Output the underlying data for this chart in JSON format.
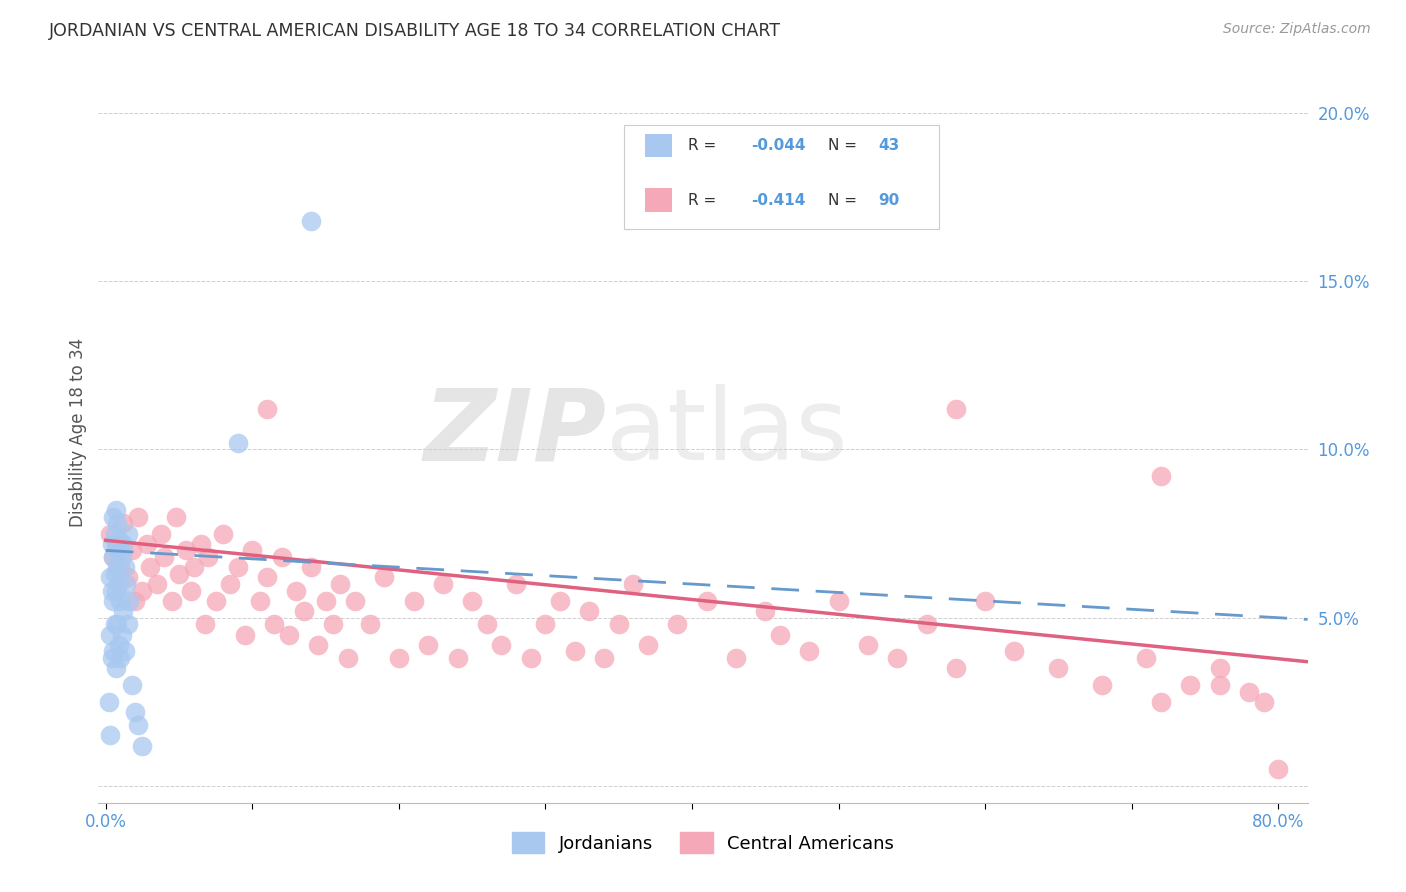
{
  "title": "JORDANIAN VS CENTRAL AMERICAN DISABILITY AGE 18 TO 34 CORRELATION CHART",
  "source": "Source: ZipAtlas.com",
  "ylabel": "Disability Age 18 to 34",
  "xlim": [
    0.0,
    0.82
  ],
  "ylim": [
    -0.005,
    0.215
  ],
  "xticks": [
    0.0,
    0.1,
    0.2,
    0.3,
    0.4,
    0.5,
    0.6,
    0.7,
    0.8
  ],
  "xticklabels": [
    "0.0%",
    "",
    "",
    "",
    "",
    "",
    "",
    "",
    "80.0%"
  ],
  "yticks": [
    0.0,
    0.05,
    0.1,
    0.15,
    0.2
  ],
  "yticklabels": [
    "",
    "5.0%",
    "10.0%",
    "15.0%",
    "20.0%"
  ],
  "jordanian_color": "#a8c8f0",
  "central_american_color": "#f5a8b8",
  "jordanian_line_color": "#6699cc",
  "central_american_line_color": "#e06080",
  "watermark_zip": "ZIP",
  "watermark_atlas": "atlas",
  "background_color": "#ffffff",
  "grid_color": "#d0d0d0",
  "tick_color": "#5599dd",
  "title_color": "#333333",
  "source_color": "#999999",
  "jord_intercept": 0.07,
  "jord_slope": -0.044,
  "ca_intercept": 0.072,
  "ca_slope": -0.414,
  "jordanians_x": [
    0.002,
    0.003,
    0.003,
    0.003,
    0.004,
    0.004,
    0.004,
    0.005,
    0.005,
    0.005,
    0.005,
    0.006,
    0.006,
    0.006,
    0.007,
    0.007,
    0.007,
    0.007,
    0.008,
    0.008,
    0.008,
    0.009,
    0.009,
    0.009,
    0.01,
    0.01,
    0.01,
    0.011,
    0.011,
    0.012,
    0.012,
    0.013,
    0.013,
    0.014,
    0.015,
    0.015,
    0.016,
    0.018,
    0.02,
    0.022,
    0.025,
    0.09,
    0.14
  ],
  "jordanians_y": [
    0.025,
    0.062,
    0.045,
    0.015,
    0.072,
    0.038,
    0.058,
    0.08,
    0.068,
    0.055,
    0.04,
    0.075,
    0.063,
    0.048,
    0.082,
    0.07,
    0.058,
    0.035,
    0.078,
    0.065,
    0.048,
    0.073,
    0.06,
    0.042,
    0.07,
    0.055,
    0.038,
    0.068,
    0.045,
    0.072,
    0.052,
    0.065,
    0.04,
    0.06,
    0.075,
    0.048,
    0.055,
    0.03,
    0.022,
    0.018,
    0.012,
    0.102,
    0.168
  ],
  "central_americans_x": [
    0.003,
    0.005,
    0.007,
    0.01,
    0.012,
    0.015,
    0.018,
    0.02,
    0.022,
    0.025,
    0.028,
    0.03,
    0.035,
    0.038,
    0.04,
    0.045,
    0.048,
    0.05,
    0.055,
    0.058,
    0.06,
    0.065,
    0.068,
    0.07,
    0.075,
    0.08,
    0.085,
    0.09,
    0.095,
    0.1,
    0.105,
    0.11,
    0.115,
    0.12,
    0.125,
    0.13,
    0.135,
    0.14,
    0.145,
    0.15,
    0.155,
    0.16,
    0.165,
    0.17,
    0.18,
    0.19,
    0.2,
    0.21,
    0.22,
    0.23,
    0.24,
    0.25,
    0.26,
    0.27,
    0.28,
    0.29,
    0.3,
    0.31,
    0.32,
    0.33,
    0.34,
    0.35,
    0.36,
    0.37,
    0.39,
    0.41,
    0.43,
    0.45,
    0.46,
    0.48,
    0.5,
    0.52,
    0.54,
    0.56,
    0.58,
    0.6,
    0.62,
    0.65,
    0.68,
    0.71,
    0.72,
    0.74,
    0.76,
    0.78,
    0.79,
    0.8,
    0.11,
    0.58,
    0.72,
    0.76
  ],
  "central_americans_y": [
    0.075,
    0.068,
    0.072,
    0.065,
    0.078,
    0.062,
    0.07,
    0.055,
    0.08,
    0.058,
    0.072,
    0.065,
    0.06,
    0.075,
    0.068,
    0.055,
    0.08,
    0.063,
    0.07,
    0.058,
    0.065,
    0.072,
    0.048,
    0.068,
    0.055,
    0.075,
    0.06,
    0.065,
    0.045,
    0.07,
    0.055,
    0.062,
    0.048,
    0.068,
    0.045,
    0.058,
    0.052,
    0.065,
    0.042,
    0.055,
    0.048,
    0.06,
    0.038,
    0.055,
    0.048,
    0.062,
    0.038,
    0.055,
    0.042,
    0.06,
    0.038,
    0.055,
    0.048,
    0.042,
    0.06,
    0.038,
    0.048,
    0.055,
    0.04,
    0.052,
    0.038,
    0.048,
    0.06,
    0.042,
    0.048,
    0.055,
    0.038,
    0.052,
    0.045,
    0.04,
    0.055,
    0.042,
    0.038,
    0.048,
    0.035,
    0.055,
    0.04,
    0.035,
    0.03,
    0.038,
    0.025,
    0.03,
    0.035,
    0.028,
    0.025,
    0.005,
    0.112,
    0.112,
    0.092,
    0.03
  ]
}
